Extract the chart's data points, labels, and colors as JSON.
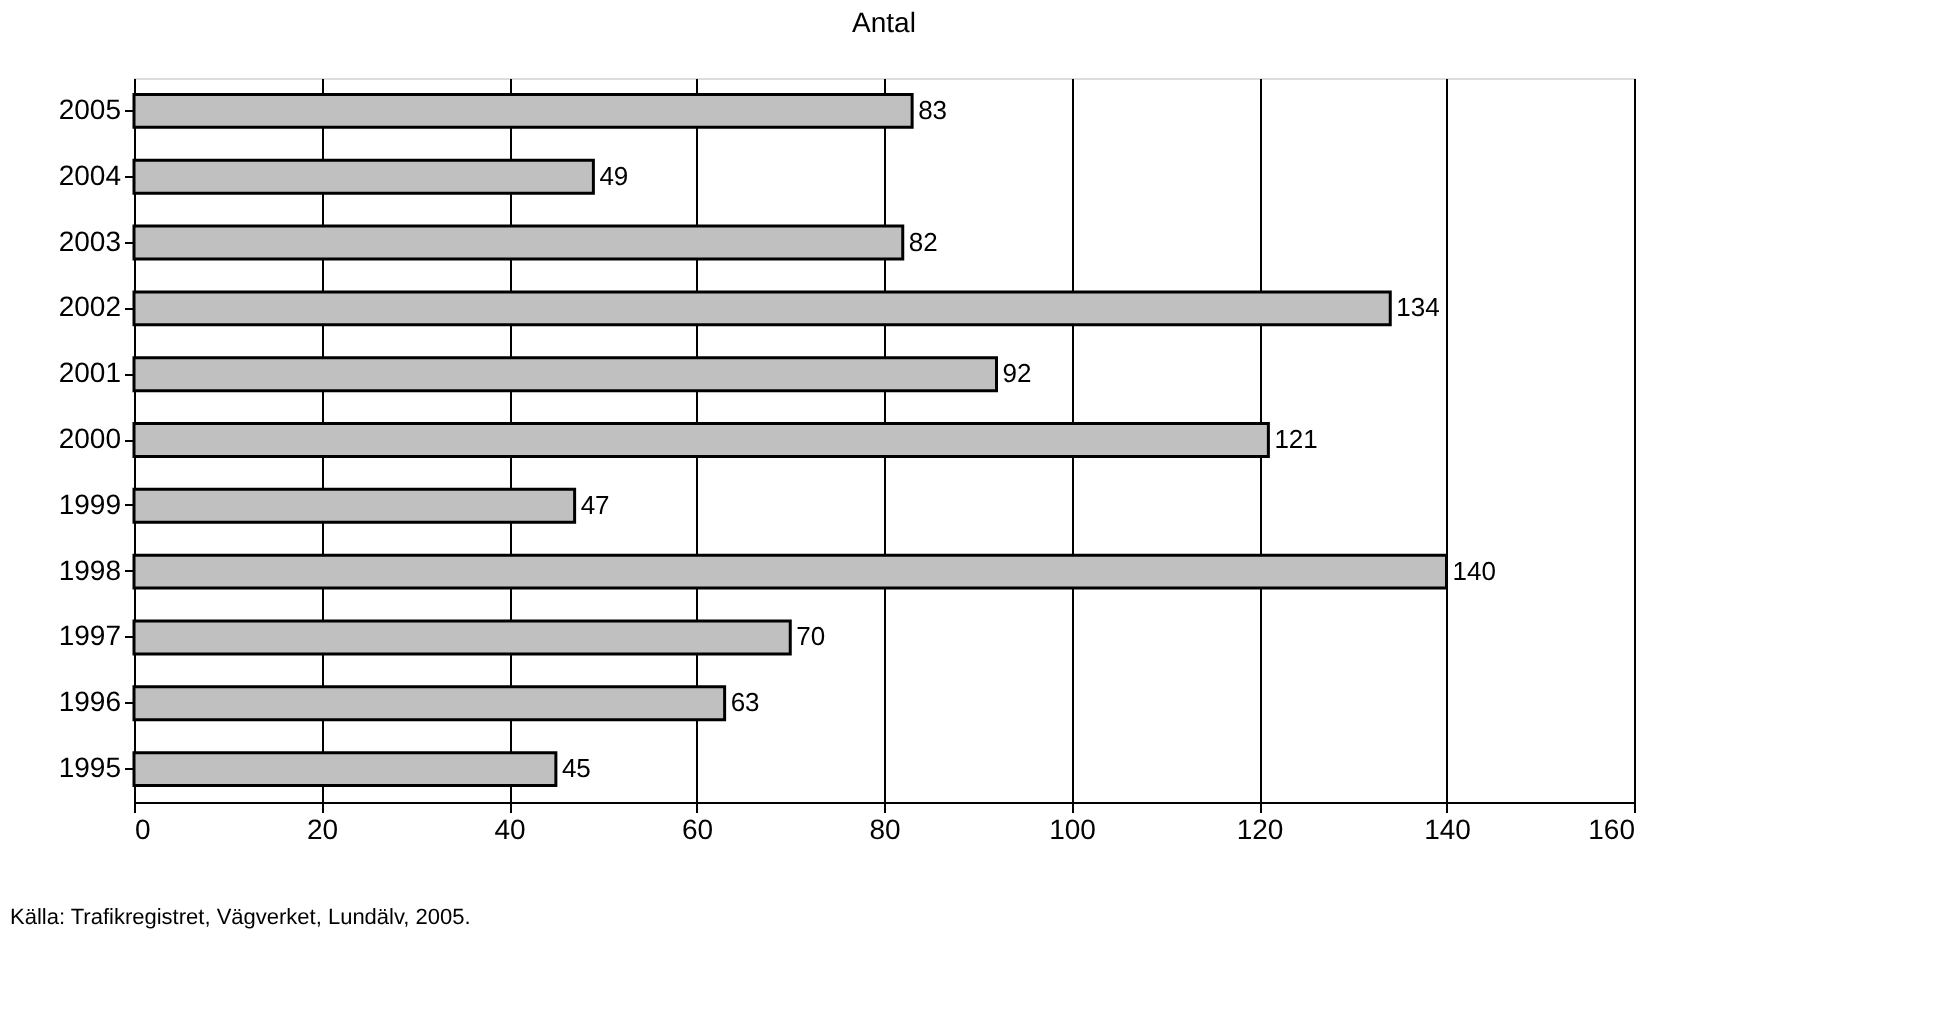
{
  "chart_data": {
    "type": "bar",
    "orientation": "horizontal",
    "title": "Antal",
    "categories": [
      "2005",
      "2004",
      "2003",
      "2002",
      "2001",
      "2000",
      "1999",
      "1998",
      "1997",
      "1996",
      "1995"
    ],
    "values": [
      83,
      49,
      82,
      134,
      92,
      121,
      47,
      140,
      70,
      63,
      45
    ],
    "color": "#c0c0c0",
    "data_labels": true,
    "xlim": [
      0,
      160
    ],
    "xticks": [
      0,
      20,
      40,
      60,
      80,
      100,
      120,
      140,
      160
    ],
    "grid": "x",
    "annotations": [
      "Källa: Trafikregistret, Vägverket, Lundälv, 2005."
    ]
  }
}
